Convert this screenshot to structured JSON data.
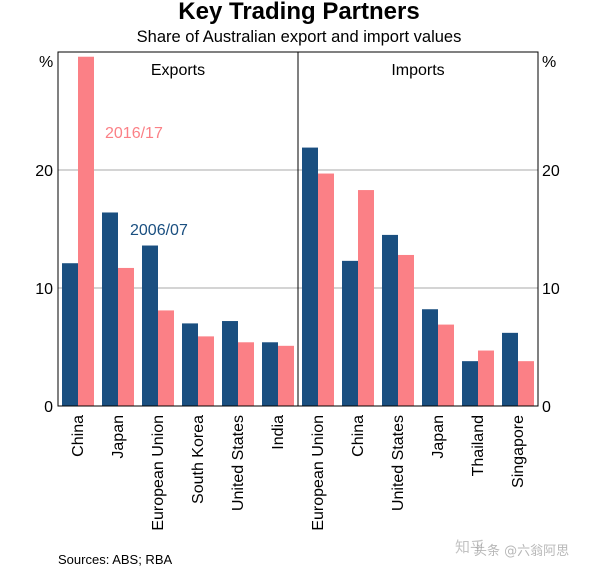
{
  "title": "Key Trading Partners",
  "subtitle": "Share of Australian export and import values",
  "source": "Sources:   ABS; RBA",
  "watermark": "知乎",
  "watermark2": "头条 @六翁阿思",
  "colors": {
    "series_2006_07": "#1a4f80",
    "series_2016_17": "#fb8086",
    "gridline": "#aaaaaa"
  },
  "chart_data": {
    "type": "bar",
    "unit_label": "%",
    "ylim": [
      0,
      30
    ],
    "yticks": [
      0,
      10,
      20
    ],
    "grid": true,
    "series": [
      {
        "name": "2006/07",
        "color": "#1a4f80"
      },
      {
        "name": "2016/17",
        "color": "#fb8086"
      }
    ],
    "panels": [
      {
        "name": "Exports",
        "categories": [
          "China",
          "Japan",
          "European Union",
          "South Korea",
          "United States",
          "India"
        ],
        "values": {
          "2006/07": [
            12.1,
            16.4,
            13.6,
            7.0,
            7.2,
            5.4
          ],
          "2016/17": [
            29.6,
            11.7,
            8.1,
            5.9,
            5.4,
            5.1
          ]
        }
      },
      {
        "name": "Imports",
        "categories": [
          "European Union",
          "China",
          "United States",
          "Japan",
          "Thailand",
          "Singapore"
        ],
        "values": {
          "2006/07": [
            21.9,
            12.3,
            14.5,
            8.2,
            3.8,
            6.2
          ],
          "2016/17": [
            19.7,
            18.3,
            12.8,
            6.9,
            4.7,
            3.8
          ]
        }
      }
    ]
  }
}
